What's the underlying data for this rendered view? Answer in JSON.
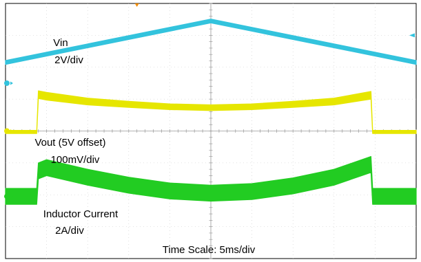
{
  "chart_data": {
    "type": "line",
    "title": "",
    "xlabel": "",
    "ylabel": "",
    "grid": true,
    "x_divisions": 10,
    "y_divisions": 8,
    "xlim": [
      0,
      50
    ],
    "ylim": [
      0,
      8
    ],
    "series": [
      {
        "name": "Vin",
        "color": "#33c3dd",
        "band": 0.06,
        "x": [
          0,
          25,
          50
        ],
        "y": [
          6.15,
          7.45,
          6.15
        ]
      },
      {
        "name": "Vout (5V offset)",
        "color": "#e6e600",
        "band": 0.08,
        "x": [
          0,
          3.8,
          4.0,
          5,
          10,
          15,
          20,
          25,
          30,
          35,
          40,
          44.5,
          44.7,
          50
        ],
        "y": [
          4.0,
          4.0,
          5.1,
          5.05,
          4.9,
          4.82,
          4.75,
          4.72,
          4.75,
          4.82,
          4.9,
          5.08,
          4.0,
          4.0
        ],
        "band_upper": [
          0.02,
          0.02,
          0.16,
          0.16,
          0.13,
          0.11,
          0.1,
          0.1,
          0.1,
          0.11,
          0.13,
          0.16,
          0.02,
          0.02
        ]
      },
      {
        "name": "Inductor Current",
        "color": "#22cc22",
        "band": 0.25,
        "x": [
          0,
          3.8,
          4.0,
          5,
          10,
          15,
          20,
          25,
          30,
          35,
          40,
          44.5,
          44.7,
          50
        ],
        "y": [
          1.95,
          1.95,
          2.75,
          2.85,
          2.55,
          2.3,
          2.12,
          2.05,
          2.1,
          2.28,
          2.55,
          2.95,
          1.95,
          1.95
        ]
      }
    ],
    "annotations": {
      "vin_name": "Vin",
      "vin_scale": "2V/div",
      "vout_name": "Vout (5V offset)",
      "vout_scale": "100mV/div",
      "il_name": "Inductor Current",
      "il_scale": "2A/div",
      "time_scale": "Time Scale: 5ms/div"
    },
    "markers": {
      "ch1_color": "#e6e600",
      "ch2_color": "#33c3dd",
      "ch4_color": "#22cc22",
      "trigger_color": "#f08a00"
    }
  }
}
